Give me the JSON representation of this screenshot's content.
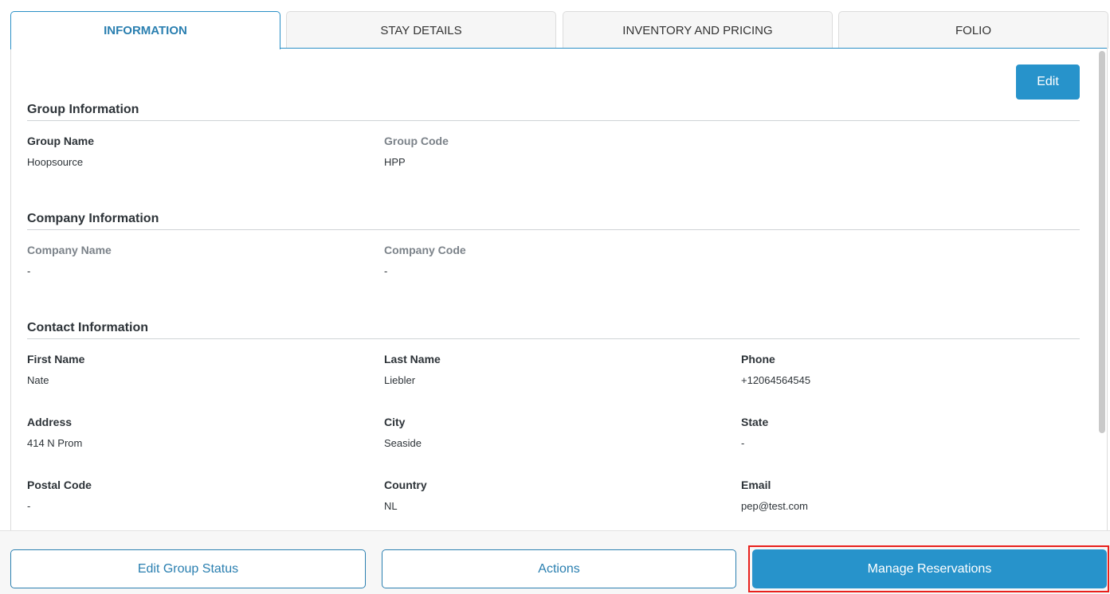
{
  "tabs": [
    {
      "label": "INFORMATION",
      "active": true
    },
    {
      "label": "STAY DETAILS"
    },
    {
      "label": "INVENTORY AND PRICING"
    },
    {
      "label": "FOLIO"
    }
  ],
  "edit_label": "Edit",
  "sections": {
    "group": {
      "title": "Group Information",
      "group_name_label": "Group Name",
      "group_name": "Hoopsource",
      "group_code_label": "Group Code",
      "group_code": "HPP"
    },
    "company": {
      "title": "Company Information",
      "company_name_label": "Company Name",
      "company_name": "-",
      "company_code_label": "Company Code",
      "company_code": "-"
    },
    "contact": {
      "title": "Contact Information",
      "first_name_label": "First Name",
      "first_name": "Nate",
      "last_name_label": "Last Name",
      "last_name": "Liebler",
      "phone_label": "Phone",
      "phone": "+12064564545",
      "address_label": "Address",
      "address": "414 N Prom",
      "city_label": "City",
      "city": "Seaside",
      "state_label": "State",
      "state": "-",
      "postal_label": "Postal Code",
      "postal": "-",
      "country_label": "Country",
      "country": "NL",
      "email_label": "Email",
      "email": "pep@test.com"
    }
  },
  "footer": {
    "edit_status": "Edit Group Status",
    "actions": "Actions",
    "manage": "Manage Reservations"
  },
  "colors": {
    "accent": "#2793cb",
    "highlight": "#e8211c"
  }
}
